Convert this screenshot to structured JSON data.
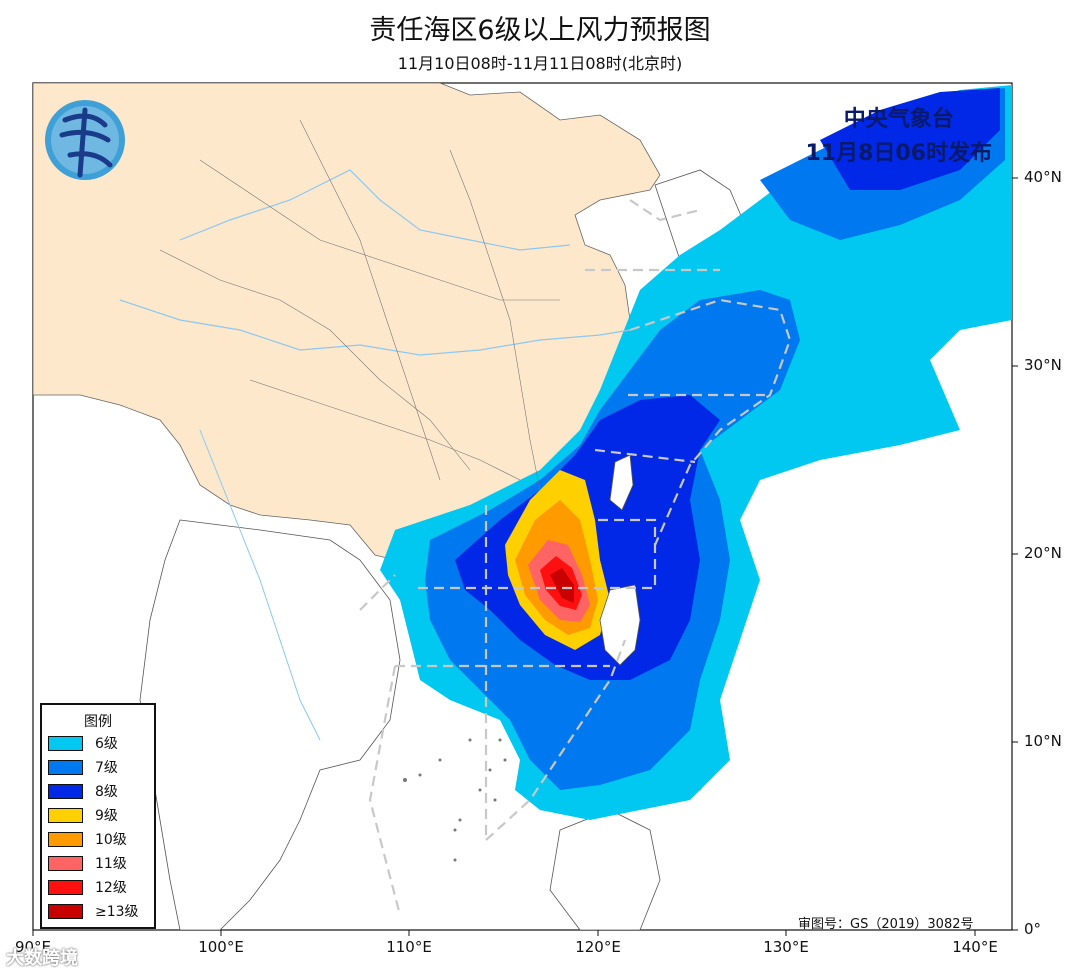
{
  "header": {
    "title": "责任海区6级以上风力预报图",
    "subtitle": "11月10日08时-11月11日08时(北京时)"
  },
  "agency": {
    "name": "中央气象台",
    "issued": "11月8日06时发布"
  },
  "axes": {
    "x_ticks": [
      "90°E",
      "100°E",
      "110°E",
      "120°E",
      "130°E",
      "140°E"
    ],
    "y_ticks": [
      "40°N",
      "30°N",
      "20°N",
      "10°N",
      "0°"
    ],
    "extent": {
      "lon": [
        90,
        142
      ],
      "lat": [
        0,
        45
      ]
    }
  },
  "legend": {
    "title": "图例",
    "items": [
      {
        "label": "6级",
        "color": "#00c8f0"
      },
      {
        "label": "7级",
        "color": "#0078f0"
      },
      {
        "label": "8级",
        "color": "#0028e6"
      },
      {
        "label": "9级",
        "color": "#ffd000"
      },
      {
        "label": "10级",
        "color": "#ff9a00"
      },
      {
        "label": "11级",
        "color": "#ff6464"
      },
      {
        "label": "12级",
        "color": "#ff1010"
      },
      {
        "label": "≥13级",
        "color": "#c80000"
      }
    ]
  },
  "approval_number": "审图号：GS（2019）3082号",
  "watermark": "大数跨境",
  "colors": {
    "land_china": "#fde8cc",
    "land_other": "#ffffff",
    "sea": "#ffffff",
    "river": "#8cc8f0",
    "boundary": "#555555",
    "zone_dash": "#c8c8c8",
    "agency_text": "#0a1a6b"
  }
}
